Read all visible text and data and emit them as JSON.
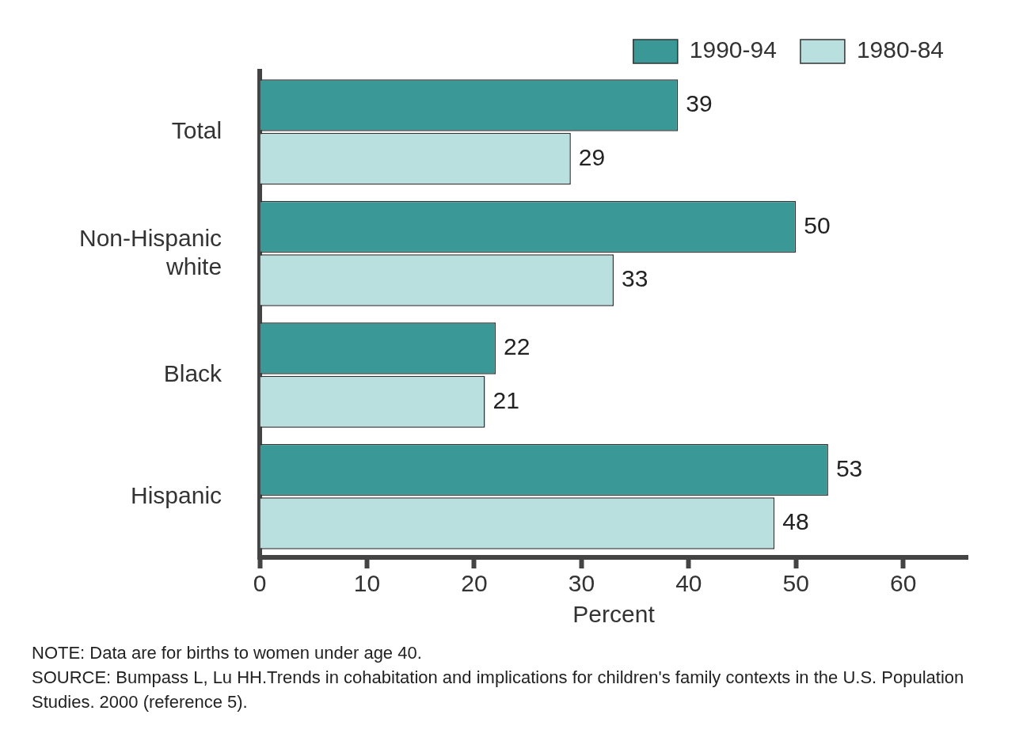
{
  "chart_data": {
    "type": "bar",
    "orientation": "horizontal",
    "categories": [
      "Total",
      "Non-Hispanic white",
      "Black",
      "Hispanic"
    ],
    "series": [
      {
        "name": "1990-94",
        "color": "#3a9896",
        "values": [
          39,
          50,
          22,
          53
        ]
      },
      {
        "name": "1980-84",
        "color": "#b9dfdf",
        "values": [
          29,
          33,
          21,
          48
        ]
      }
    ],
    "xlim": [
      0,
      66
    ],
    "xticks": [
      0,
      10,
      20,
      30,
      40,
      50,
      60
    ],
    "xlabel": "Percent",
    "data_labels": true,
    "legend": "top right",
    "grid": false,
    "annotations": [
      "NOTE: Data are for births to women under age 40.",
      "SOURCE: Bumpass L, Lu HH.Trends in cohabitation and implications for children's family contexts in the U.S. Population Studies. 2000 (reference 5)."
    ]
  }
}
